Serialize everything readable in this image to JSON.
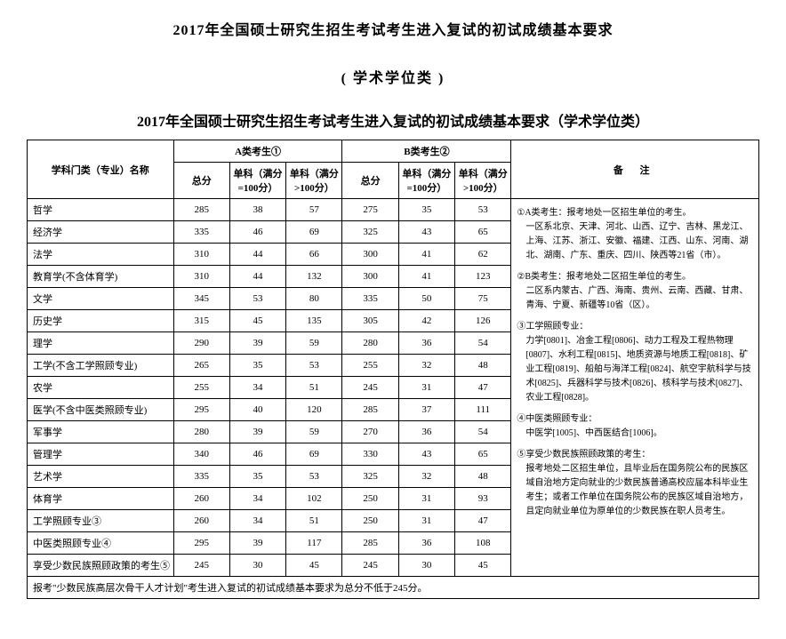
{
  "title_main": "2017年全国硕士研究生招生考试考生进入复试的初试成绩基本要求",
  "title_sub": "( 学术学位类 )",
  "title_table": "2017年全国硕士研究生招生考试考生进入复试的初试成绩基本要求（学术学位类）",
  "headers": {
    "subject": "学科门类（专业）名称",
    "groupA": "A类考生①",
    "groupB": "B类考生②",
    "total": "总分",
    "single100": "单科（满分=100分）",
    "singleOver100": "单科（满分>100分）",
    "notes": "备  注"
  },
  "rows": [
    {
      "name": "哲学",
      "a_total": "285",
      "a_s1": "38",
      "a_s2": "57",
      "b_total": "275",
      "b_s1": "35",
      "b_s2": "53"
    },
    {
      "name": "经济学",
      "a_total": "335",
      "a_s1": "46",
      "a_s2": "69",
      "b_total": "325",
      "b_s1": "43",
      "b_s2": "65"
    },
    {
      "name": "法学",
      "a_total": "310",
      "a_s1": "44",
      "a_s2": "66",
      "b_total": "300",
      "b_s1": "41",
      "b_s2": "62"
    },
    {
      "name": "教育学(不含体育学)",
      "a_total": "310",
      "a_s1": "44",
      "a_s2": "132",
      "b_total": "300",
      "b_s1": "41",
      "b_s2": "123"
    },
    {
      "name": "文学",
      "a_total": "345",
      "a_s1": "53",
      "a_s2": "80",
      "b_total": "335",
      "b_s1": "50",
      "b_s2": "75"
    },
    {
      "name": "历史学",
      "a_total": "315",
      "a_s1": "45",
      "a_s2": "135",
      "b_total": "305",
      "b_s1": "42",
      "b_s2": "126"
    },
    {
      "name": "理学",
      "a_total": "290",
      "a_s1": "39",
      "a_s2": "59",
      "b_total": "280",
      "b_s1": "36",
      "b_s2": "54"
    },
    {
      "name": "工学(不含工学照顾专业)",
      "a_total": "265",
      "a_s1": "35",
      "a_s2": "53",
      "b_total": "255",
      "b_s1": "32",
      "b_s2": "48"
    },
    {
      "name": "农学",
      "a_total": "255",
      "a_s1": "34",
      "a_s2": "51",
      "b_total": "245",
      "b_s1": "31",
      "b_s2": "47"
    },
    {
      "name": "医学(不含中医类照顾专业)",
      "a_total": "295",
      "a_s1": "40",
      "a_s2": "120",
      "b_total": "285",
      "b_s1": "37",
      "b_s2": "111"
    },
    {
      "name": "军事学",
      "a_total": "280",
      "a_s1": "39",
      "a_s2": "59",
      "b_total": "270",
      "b_s1": "36",
      "b_s2": "54"
    },
    {
      "name": "管理学",
      "a_total": "340",
      "a_s1": "46",
      "a_s2": "69",
      "b_total": "330",
      "b_s1": "43",
      "b_s2": "65"
    },
    {
      "name": "艺术学",
      "a_total": "335",
      "a_s1": "35",
      "a_s2": "53",
      "b_total": "325",
      "b_s1": "32",
      "b_s2": "48"
    },
    {
      "name": "体育学",
      "a_total": "260",
      "a_s1": "34",
      "a_s2": "102",
      "b_total": "250",
      "b_s1": "31",
      "b_s2": "93"
    },
    {
      "name": "工学照顾专业③",
      "a_total": "260",
      "a_s1": "34",
      "a_s2": "51",
      "b_total": "250",
      "b_s1": "31",
      "b_s2": "47"
    },
    {
      "name": "中医类照顾专业④",
      "a_total": "295",
      "a_s1": "39",
      "a_s2": "117",
      "b_total": "285",
      "b_s1": "36",
      "b_s2": "108"
    },
    {
      "name": "享受少数民族照顾政策的考生⑤",
      "a_total": "245",
      "a_s1": "30",
      "a_s2": "45",
      "b_total": "245",
      "b_s1": "30",
      "b_s2": "45"
    }
  ],
  "footnote": "报考\"少数民族高层次骨干人才计划\"考生进入复试的初试成绩基本要求为总分不低于245分。",
  "notes": {
    "n1_title": "①A类考生：报考地处一区招生单位的考生。",
    "n1_body": "一区系北京、天津、河北、山西、辽宁、吉林、黑龙江、上海、江苏、浙江、安徽、福建、江西、山东、河南、湖北、湖南、广东、重庆、四川、陕西等21省（市）。",
    "n2_title": "②B类考生：报考地处二区招生单位的考生。",
    "n2_body": "二区系内蒙古、广西、海南、贵州、云南、西藏、甘肃、青海、宁夏、新疆等10省（区）。",
    "n3_title": "③工学照顾专业：",
    "n3_body": "力学[0801]、冶金工程[0806]、动力工程及工程热物理[0807]、水利工程[0815]、地质资源与地质工程[0818]、矿业工程[0819]、船舶与海洋工程[0824]、航空宇航科学与技术[0825]、兵器科学与技术[0826]、核科学与技术[0827]、农业工程[0828]。",
    "n4_title": "④中医类照顾专业：",
    "n4_body": "中医学[1005]、中西医结合[1006]。",
    "n5_title": "⑤享受少数民族照顾政策的考生：",
    "n5_body": "报考地处二区招生单位，且毕业后在国务院公布的民族区域自治地方定向就业的少数民族普通高校应届本科毕业生考生；或者工作单位在国务院公布的民族区域自治地方，且定向就业单位为原单位的少数民族在职人员考生。"
  },
  "styling": {
    "page_bg": "#ffffff",
    "border_color": "#000000",
    "text_color": "#000000",
    "title_fontsize": 16,
    "body_fontsize": 11,
    "notes_fontsize": 10,
    "font_family": "SimSun"
  }
}
